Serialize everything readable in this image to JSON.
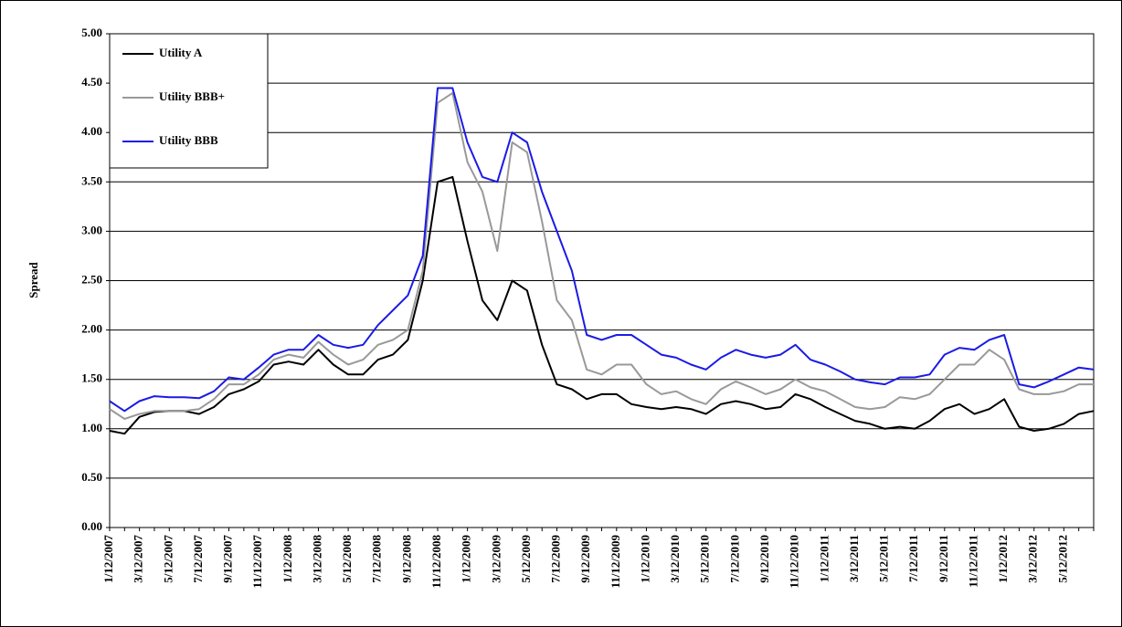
{
  "chart_data": {
    "type": "line",
    "y_label": "Spread",
    "categories": [
      "1/12/2007",
      null,
      "3/12/2007",
      null,
      "5/12/2007",
      null,
      "7/12/2007",
      null,
      "9/12/2007",
      null,
      "11/12/2007",
      null,
      "1/12/2008",
      null,
      "3/12/2008",
      null,
      "5/12/2008",
      null,
      "7/12/2008",
      null,
      "9/12/2008",
      null,
      "11/12/2008",
      null,
      "1/12/2009",
      null,
      "3/12/2009",
      null,
      "5/12/2009",
      null,
      "7/12/2009",
      null,
      "9/12/2009",
      null,
      "11/12/2009",
      null,
      "1/12/2010",
      null,
      "3/12/2010",
      null,
      "5/12/2010",
      null,
      "7/12/2010",
      null,
      "9/12/2010",
      null,
      "11/12/2010",
      null,
      "1/12/2011",
      null,
      "3/12/2011",
      null,
      "5/12/2011",
      null,
      "7/12/2011",
      null,
      "9/12/2011",
      null,
      "11/12/2011",
      null,
      "1/12/2012",
      null,
      "3/12/2012",
      null,
      "5/12/2012",
      null,
      null
    ],
    "series": [
      {
        "name": "Utility A",
        "color": "#000000",
        "values": [
          0.98,
          0.95,
          1.12,
          1.17,
          1.18,
          1.18,
          1.15,
          1.22,
          1.35,
          1.4,
          1.48,
          1.65,
          1.68,
          1.65,
          1.8,
          1.65,
          1.55,
          1.55,
          1.7,
          1.75,
          1.9,
          2.5,
          3.5,
          3.55,
          2.9,
          2.3,
          2.1,
          2.5,
          2.4,
          1.85,
          1.45,
          1.4,
          1.3,
          1.35,
          1.35,
          1.25,
          1.22,
          1.2,
          1.22,
          1.2,
          1.15,
          1.25,
          1.28,
          1.25,
          1.2,
          1.22,
          1.35,
          1.3,
          1.22,
          1.15,
          1.08,
          1.05,
          1.0,
          1.02,
          1.0,
          1.08,
          1.2,
          1.25,
          1.15,
          1.2,
          1.3,
          1.02,
          0.98,
          1.0,
          1.05,
          1.15,
          1.18
        ]
      },
      {
        "name": "Utility BBB+",
        "color": "#999999",
        "values": [
          1.2,
          1.1,
          1.15,
          1.18,
          1.18,
          1.18,
          1.2,
          1.3,
          1.45,
          1.45,
          1.55,
          1.7,
          1.75,
          1.72,
          1.88,
          1.75,
          1.65,
          1.7,
          1.85,
          1.9,
          2.0,
          2.6,
          4.3,
          4.4,
          3.7,
          3.4,
          2.8,
          3.9,
          3.8,
          3.1,
          2.3,
          2.1,
          1.6,
          1.55,
          1.65,
          1.65,
          1.45,
          1.35,
          1.38,
          1.3,
          1.25,
          1.4,
          1.48,
          1.42,
          1.35,
          1.4,
          1.5,
          1.42,
          1.38,
          1.3,
          1.22,
          1.2,
          1.22,
          1.32,
          1.3,
          1.35,
          1.5,
          1.65,
          1.65,
          1.8,
          1.7,
          1.4,
          1.35,
          1.35,
          1.38,
          1.45,
          1.45
        ]
      },
      {
        "name": "Utility BBB",
        "color": "#1a1ae6",
        "values": [
          1.28,
          1.18,
          1.28,
          1.33,
          1.32,
          1.32,
          1.31,
          1.38,
          1.52,
          1.5,
          1.62,
          1.75,
          1.8,
          1.8,
          1.95,
          1.85,
          1.82,
          1.85,
          2.05,
          2.2,
          2.35,
          2.75,
          4.45,
          4.45,
          3.9,
          3.55,
          3.5,
          4.0,
          3.9,
          3.4,
          3.0,
          2.6,
          1.95,
          1.9,
          1.95,
          1.95,
          1.85,
          1.75,
          1.72,
          1.65,
          1.6,
          1.72,
          1.8,
          1.75,
          1.72,
          1.75,
          1.85,
          1.7,
          1.65,
          1.58,
          1.5,
          1.47,
          1.45,
          1.52,
          1.52,
          1.55,
          1.75,
          1.82,
          1.8,
          1.9,
          1.95,
          1.45,
          1.42,
          1.48,
          1.55,
          1.62,
          1.6
        ]
      }
    ],
    "ylim": [
      0,
      5
    ],
    "yticks": [
      {
        "value": 0,
        "label": "0.00"
      },
      {
        "value": 0.5,
        "label": "0.50"
      },
      {
        "value": 1,
        "label": "1.00"
      },
      {
        "value": 1.5,
        "label": "1.50"
      },
      {
        "value": 2,
        "label": "2.00"
      },
      {
        "value": 2.5,
        "label": "2.50"
      },
      {
        "value": 3,
        "label": "3.00"
      },
      {
        "value": 3.5,
        "label": "3.50"
      },
      {
        "value": 4,
        "label": "4.00"
      },
      {
        "value": 4.5,
        "label": "4.50"
      },
      {
        "value": 5,
        "label": "5.00"
      }
    ],
    "grid": true,
    "legend": "upper-left"
  }
}
